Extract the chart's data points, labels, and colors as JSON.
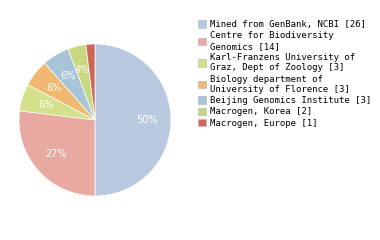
{
  "labels": [
    "Mined from GenBank, NCBI [26]",
    "Centre for Biodiversity\nGenomics [14]",
    "Karl-Franzens University of\nGraz, Dept of Zoology [3]",
    "Biology department of\nUniversity of Florence [3]",
    "Beijing Genomics Institute [3]",
    "Macrogen, Korea [2]",
    "Macrogen, Europe [1]"
  ],
  "values": [
    26,
    14,
    3,
    3,
    3,
    2,
    1
  ],
  "colors": [
    "#b8c9e0",
    "#e8a9a0",
    "#d4e08a",
    "#f0b870",
    "#a8c4d8",
    "#c8d880",
    "#cc6655"
  ],
  "startangle": 90,
  "background_color": "#ffffff",
  "text_color": "#ffffff",
  "fontsize": 7.0,
  "legend_fontsize": 6.5
}
